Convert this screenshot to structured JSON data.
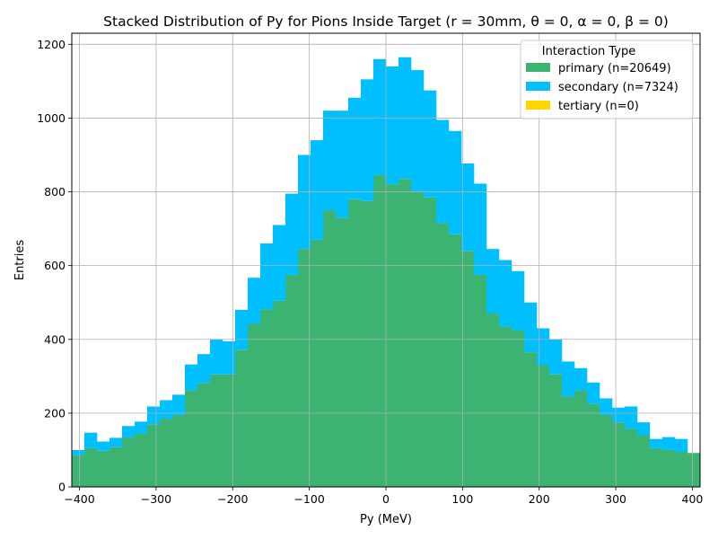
{
  "chart_data": {
    "type": "bar",
    "subtype": "stacked-histogram",
    "title": "Stacked Distribution of Py for Pions Inside Target (r = 30mm, θ = 0, α = 0, β = 0)",
    "xlabel": "Py (MeV)",
    "ylabel": "Entries",
    "xlim": [
      -410,
      410
    ],
    "ylim": [
      0,
      1230
    ],
    "xticks": [
      -400,
      -300,
      -200,
      -100,
      0,
      100,
      200,
      300,
      400
    ],
    "yticks": [
      0,
      200,
      400,
      600,
      800,
      1000,
      1200
    ],
    "grid": true,
    "bin_edges_start": -410,
    "bin_width": 16.4,
    "legend": {
      "title": "Interaction Type",
      "position": "top-right"
    },
    "series": [
      {
        "name": "primary (n=20649)",
        "color": "#3cb371",
        "values": [
          85,
          105,
          98,
          108,
          135,
          145,
          170,
          185,
          195,
          262,
          282,
          305,
          305,
          372,
          442,
          482,
          505,
          575,
          645,
          670,
          750,
          730,
          780,
          775,
          845,
          820,
          835,
          800,
          785,
          715,
          685,
          640,
          575,
          470,
          435,
          425,
          365,
          330,
          305,
          245,
          262,
          225,
          195,
          175,
          158,
          140,
          105,
          100,
          95,
          92
        ]
      },
      {
        "name": "secondary (n=7324)",
        "color": "#00bfff",
        "values": [
          15,
          42,
          25,
          25,
          30,
          32,
          48,
          50,
          55,
          70,
          78,
          95,
          90,
          108,
          125,
          178,
          205,
          220,
          255,
          270,
          270,
          290,
          275,
          330,
          315,
          320,
          330,
          330,
          290,
          280,
          280,
          237,
          247,
          175,
          180,
          160,
          135,
          100,
          95,
          95,
          60,
          58,
          45,
          40,
          60,
          35,
          25,
          35,
          35,
          0
        ]
      },
      {
        "name": "tertiary (n=0)",
        "color": "#ffd700",
        "values": [
          0,
          0,
          0,
          0,
          0,
          0,
          0,
          0,
          0,
          0,
          0,
          0,
          0,
          0,
          0,
          0,
          0,
          0,
          0,
          0,
          0,
          0,
          0,
          0,
          0,
          0,
          0,
          0,
          0,
          0,
          0,
          0,
          0,
          0,
          0,
          0,
          0,
          0,
          0,
          0,
          0,
          0,
          0,
          0,
          0,
          0,
          0,
          0,
          0,
          0
        ]
      }
    ]
  }
}
